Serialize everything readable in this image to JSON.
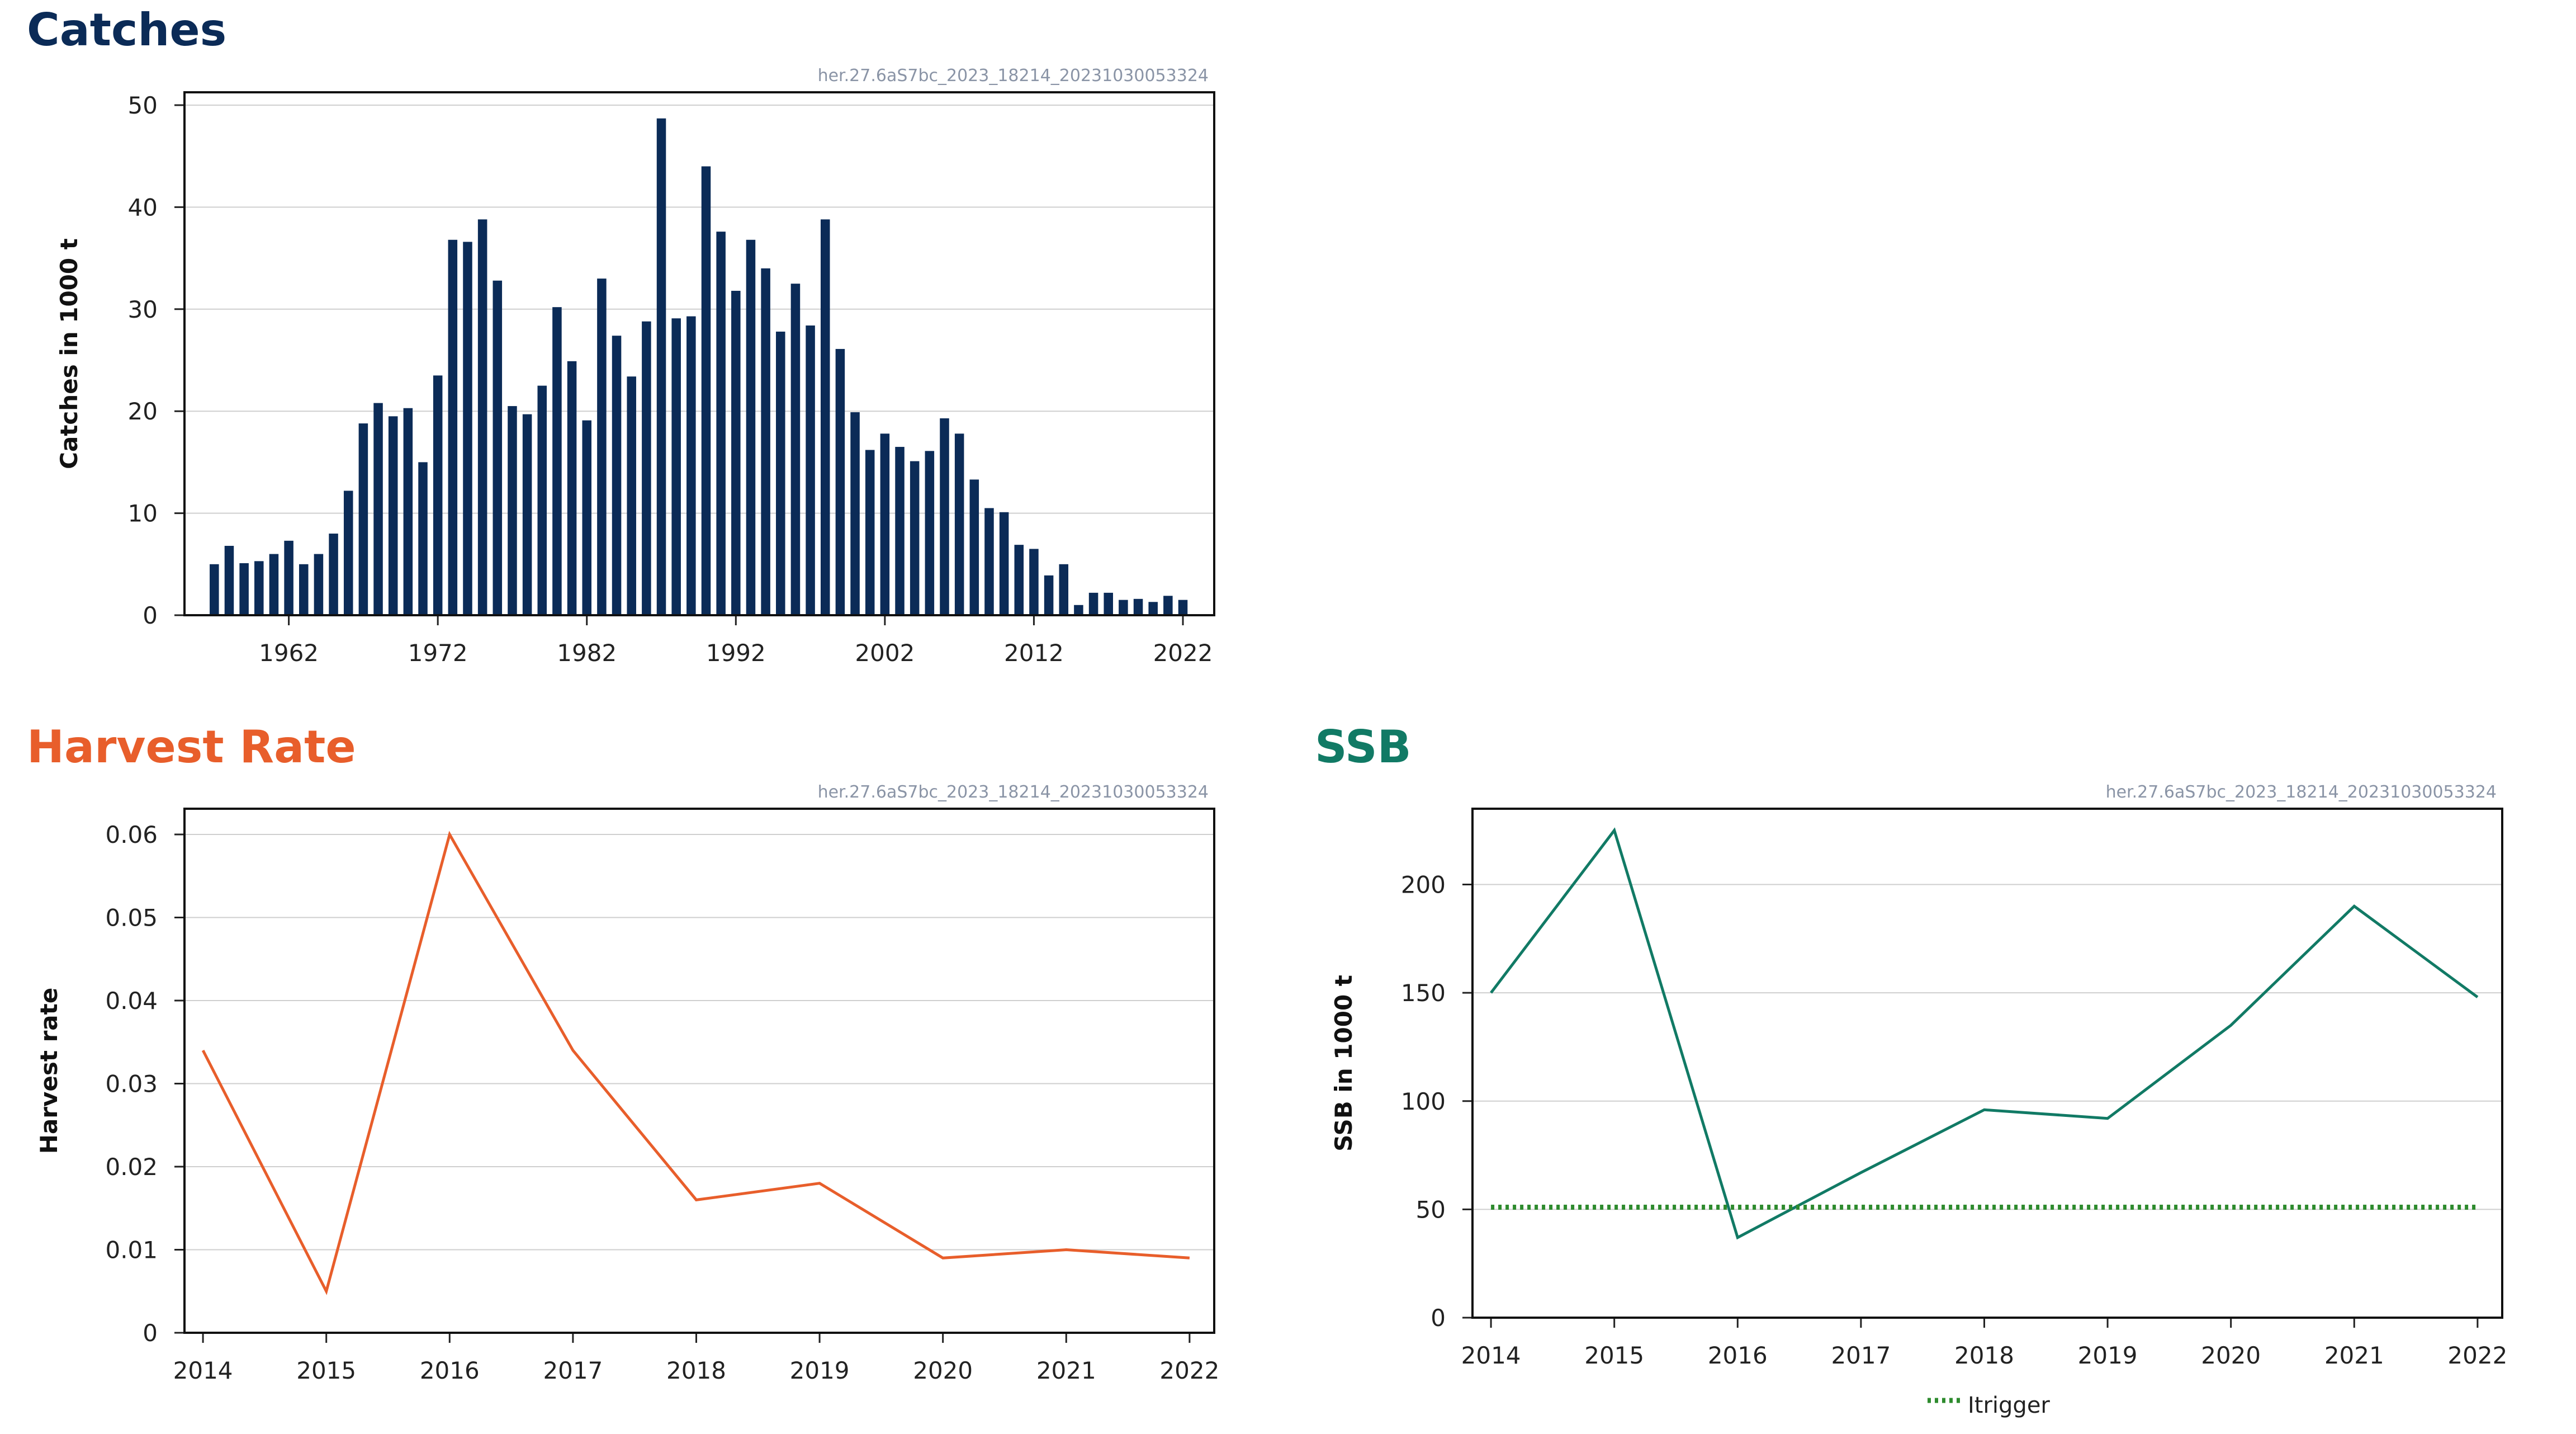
{
  "catches_panel": {
    "title": "Catches",
    "title_color": "#0b2b57"
  },
  "harvest_panel": {
    "title": "Harvest Rate",
    "title_color": "#e85e2b"
  },
  "ssb_panel": {
    "title": "SSB",
    "title_color": "#117a65"
  },
  "stamp": "her.27.6aS7bc_2023_18214_20231030053324",
  "chart_data": [
    {
      "type": "bar",
      "title": "",
      "ylabel": "Catches in 1000 t",
      "xlabel": "",
      "ylim": [
        0,
        50
      ],
      "yticks": [
        0,
        10,
        20,
        30,
        40,
        50
      ],
      "xticks": [
        1962,
        1972,
        1982,
        1992,
        2002,
        2012,
        2022
      ],
      "color": "#0b2b57",
      "grid": true,
      "x": [
        1957,
        1958,
        1959,
        1960,
        1961,
        1962,
        1963,
        1964,
        1965,
        1966,
        1967,
        1968,
        1969,
        1970,
        1971,
        1972,
        1973,
        1974,
        1975,
        1976,
        1977,
        1978,
        1979,
        1980,
        1981,
        1982,
        1983,
        1984,
        1985,
        1986,
        1987,
        1988,
        1989,
        1990,
        1991,
        1992,
        1993,
        1994,
        1995,
        1996,
        1997,
        1998,
        1999,
        2000,
        2001,
        2002,
        2003,
        2004,
        2005,
        2006,
        2007,
        2008,
        2009,
        2010,
        2011,
        2012,
        2013,
        2014,
        2015,
        2016,
        2017,
        2018,
        2019,
        2020,
        2021,
        2022
      ],
      "values": [
        5.0,
        6.8,
        5.1,
        5.3,
        6.0,
        7.3,
        5.0,
        6.0,
        8.0,
        12.2,
        18.8,
        20.8,
        19.5,
        20.3,
        15.0,
        23.5,
        36.8,
        36.6,
        38.8,
        32.8,
        20.5,
        19.7,
        22.5,
        30.2,
        24.9,
        19.1,
        33.0,
        27.4,
        23.4,
        28.8,
        48.7,
        29.1,
        29.3,
        44.0,
        37.6,
        31.8,
        36.8,
        34.0,
        27.8,
        32.5,
        28.4,
        38.8,
        26.1,
        19.9,
        16.2,
        17.8,
        16.5,
        15.1,
        16.1,
        19.3,
        17.8,
        13.3,
        10.5,
        10.1,
        6.9,
        6.5,
        3.9,
        5.0,
        1.0,
        2.2,
        2.2,
        1.5,
        1.6,
        1.3,
        1.9,
        1.5
      ]
    },
    {
      "type": "line",
      "title": "",
      "ylabel": "Harvest rate",
      "xlabel": "",
      "ylim": [
        0,
        0.06
      ],
      "yticks": [
        0,
        0.01,
        0.02,
        0.03,
        0.04,
        0.05,
        0.06
      ],
      "x": [
        2014,
        2015,
        2016,
        2017,
        2018,
        2019,
        2020,
        2021,
        2022
      ],
      "series": [
        {
          "values": [
            0.034,
            0.005,
            0.06,
            0.034,
            0.016,
            0.018,
            0.009,
            0.01,
            0.009
          ],
          "color": "#e85e2b"
        }
      ],
      "grid": true
    },
    {
      "type": "line",
      "title": "",
      "ylabel": "SSB in 1000 t",
      "xlabel": "",
      "ylim": [
        0,
        235
      ],
      "yticks": [
        0,
        50,
        100,
        150,
        200
      ],
      "x": [
        2014,
        2015,
        2016,
        2017,
        2018,
        2019,
        2020,
        2021,
        2022
      ],
      "series": [
        {
          "values": [
            150,
            225,
            37,
            67,
            96,
            92,
            135,
            190,
            148
          ],
          "color": "#117a65"
        },
        {
          "name": "Itrigger",
          "values": [
            51,
            51,
            51,
            51,
            51,
            51,
            51,
            51,
            51
          ],
          "color": "#2e8b2e",
          "style": "dotted"
        }
      ],
      "legend": "bottom",
      "grid": true
    }
  ]
}
